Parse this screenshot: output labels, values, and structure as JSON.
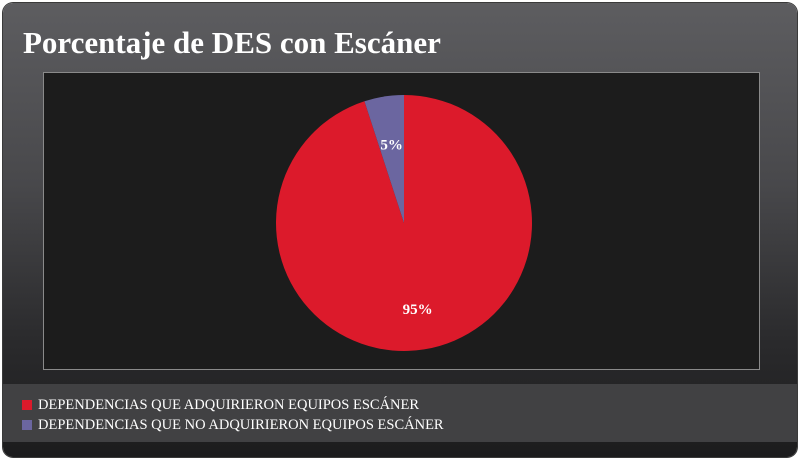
{
  "colors": {
    "background_gradient_top": "#5d5d60",
    "background_gradient_bottom": "#1c1c1d",
    "plot_background": "#1c1c1c",
    "legend_band": "#414143",
    "title_text": "#ffffff"
  },
  "chart_data": {
    "type": "pie",
    "title": "Porcentaje de DES con Escáner",
    "slices": [
      {
        "label": "DEPENDENCIAS QUE ADQUIRIERON EQUIPOS ESCÁNER",
        "value": 95,
        "display": "95%",
        "color": "#dc1a2b"
      },
      {
        "label": "DEPENDENCIAS QUE NO ADQUIRIERON EQUIPOS ESCÁNER",
        "value": 5,
        "display": "5%",
        "color": "#6b66a0"
      }
    ],
    "legend_position": "bottom-left"
  }
}
